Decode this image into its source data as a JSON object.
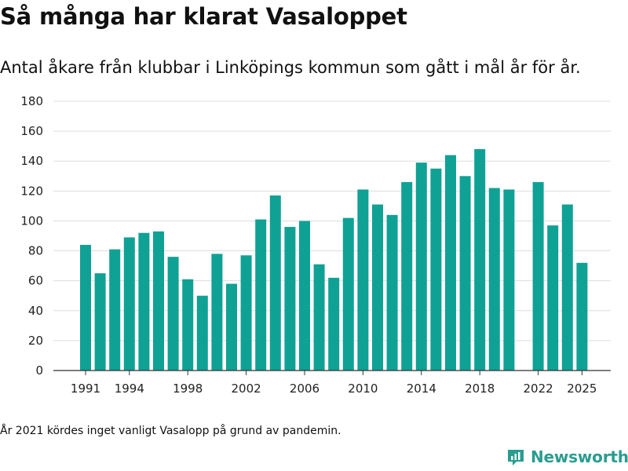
{
  "title": "Så många har klarat Vasaloppet",
  "subtitle": "Antal åkare från klubbar i Linköpings kommun som gått i mål år för år.",
  "footnote": "År 2021 kördes inget vanligt Vasalopp på grund av pandemin.",
  "brand": {
    "name": "Newsworthy",
    "color": "#2a9d8f",
    "icon": "newsworthy-logo-icon"
  },
  "colors": {
    "bar": "#10a195",
    "grid": "#dddddd",
    "axis": "#333333"
  },
  "chart_data": {
    "type": "bar",
    "title": "Så många har klarat Vasaloppet",
    "subtitle": "Antal åkare från klubbar i Linköpings kommun som gått i mål år för år.",
    "xlabel": "",
    "ylabel": "",
    "ylim": [
      0,
      180
    ],
    "yticks": [
      0,
      20,
      40,
      60,
      80,
      100,
      120,
      140,
      160,
      180
    ],
    "xticks": [
      1991,
      1994,
      1998,
      2002,
      2006,
      2010,
      2014,
      2018,
      2022,
      2025
    ],
    "xlim": [
      1991,
      2025
    ],
    "grid": true,
    "legend": "none",
    "categories": [
      1991,
      1992,
      1993,
      1994,
      1995,
      1996,
      1997,
      1998,
      1999,
      2000,
      2001,
      2002,
      2003,
      2004,
      2005,
      2006,
      2007,
      2008,
      2009,
      2010,
      2011,
      2012,
      2013,
      2014,
      2015,
      2016,
      2017,
      2018,
      2019,
      2020,
      2022,
      2023,
      2024,
      2025
    ],
    "values": [
      84,
      65,
      81,
      89,
      92,
      93,
      76,
      61,
      50,
      78,
      58,
      77,
      101,
      117,
      96,
      100,
      71,
      62,
      102,
      121,
      111,
      104,
      126,
      139,
      135,
      144,
      130,
      148,
      122,
      121,
      126,
      97,
      111,
      72
    ]
  }
}
